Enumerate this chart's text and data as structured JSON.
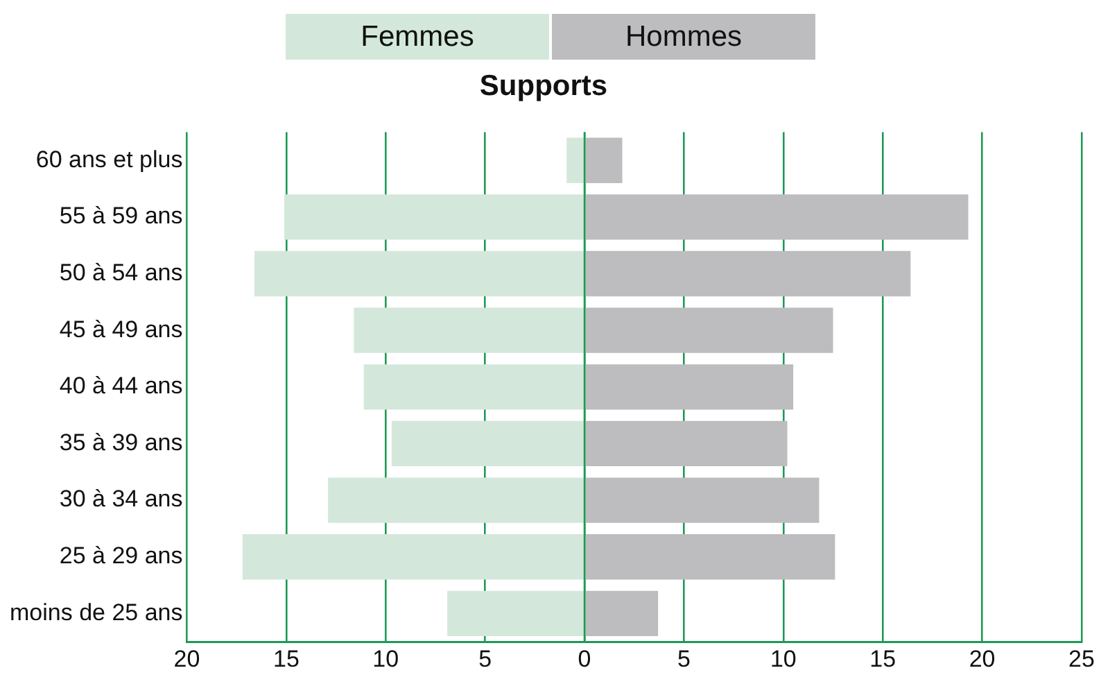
{
  "chart_data": {
    "type": "bar",
    "orientation": "horizontal",
    "stacked": true,
    "title": "Supports",
    "categories": [
      "60 ans et plus",
      "55 à 59 ans",
      "50 à 54 ans",
      "45 à 49 ans",
      "40 à 44 ans",
      "35 à 39 ans",
      "30 à 34 ans",
      "25 à 29 ans",
      "moins de 25 ans"
    ],
    "series": [
      {
        "name": "Femmes",
        "color": "#d3e8da",
        "values": [
          -0.9,
          -15.1,
          -16.6,
          -11.6,
          -11.1,
          -9.7,
          -12.9,
          -17.2,
          -6.9
        ]
      },
      {
        "name": "Hommes",
        "color": "#bdbdc0",
        "values": [
          1.9,
          19.3,
          16.4,
          12.5,
          10.5,
          10.2,
          11.8,
          12.6,
          3.7
        ]
      }
    ],
    "xlim": [
      -20,
      25
    ],
    "xticks": [
      {
        "value": -20,
        "label": "20"
      },
      {
        "value": -15,
        "label": "15"
      },
      {
        "value": -10,
        "label": "10"
      },
      {
        "value": -5,
        "label": "5"
      },
      0,
      5,
      10,
      15,
      20,
      25
    ],
    "grid": "x",
    "legend": "top"
  }
}
